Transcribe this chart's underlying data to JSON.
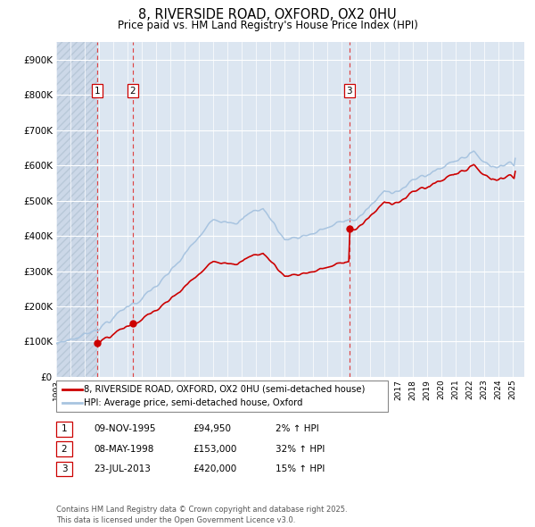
{
  "title_line1": "8, RIVERSIDE ROAD, OXFORD, OX2 0HU",
  "title_line2": "Price paid vs. HM Land Registry's House Price Index (HPI)",
  "xlim_start": 1993.0,
  "xlim_end": 2025.8,
  "ylim_min": 0,
  "ylim_max": 950000,
  "ytick_values": [
    0,
    100000,
    200000,
    300000,
    400000,
    500000,
    600000,
    700000,
    800000,
    900000
  ],
  "ytick_labels": [
    "£0",
    "£100K",
    "£200K",
    "£300K",
    "£400K",
    "£500K",
    "£600K",
    "£700K",
    "£800K",
    "£900K"
  ],
  "xtick_years": [
    1993,
    1994,
    1995,
    1996,
    1997,
    1998,
    1999,
    2000,
    2001,
    2002,
    2003,
    2004,
    2005,
    2006,
    2007,
    2008,
    2009,
    2010,
    2011,
    2012,
    2013,
    2014,
    2015,
    2016,
    2017,
    2018,
    2019,
    2020,
    2021,
    2022,
    2023,
    2024,
    2025
  ],
  "hpi_color": "#a8c4e0",
  "price_color": "#cc0000",
  "bg_color": "#dce6f1",
  "hatch_fill_color": "#ccd8e8",
  "grid_color": "#ffffff",
  "dashed_line_color": "#dd4444",
  "sale_marker_color": "#cc0000",
  "sale_marker_size": 6,
  "purchases": [
    {
      "label": "1",
      "date_num": 1995.86,
      "price": 94950
    },
    {
      "label": "2",
      "date_num": 1998.36,
      "price": 153000
    },
    {
      "label": "3",
      "date_num": 2013.55,
      "price": 420000
    }
  ],
  "legend_entries": [
    {
      "color": "#cc0000",
      "text": "8, RIVERSIDE ROAD, OXFORD, OX2 0HU (semi-detached house)"
    },
    {
      "color": "#a8c4e0",
      "text": "HPI: Average price, semi-detached house, Oxford"
    }
  ],
  "table_entries": [
    {
      "num": "1",
      "date": "09-NOV-1995",
      "price": "£94,950",
      "hpi": "2% ↑ HPI"
    },
    {
      "num": "2",
      "date": "08-MAY-1998",
      "price": "£153,000",
      "hpi": "32% ↑ HPI"
    },
    {
      "num": "3",
      "date": "23-JUL-2013",
      "price": "£420,000",
      "hpi": "15% ↑ HPI"
    }
  ],
  "footnote": "Contains HM Land Registry data © Crown copyright and database right 2025.\nThis data is licensed under the Open Government Licence v3.0.",
  "hatch_end_year": 1995.86,
  "fig_width": 6.0,
  "fig_height": 5.9
}
